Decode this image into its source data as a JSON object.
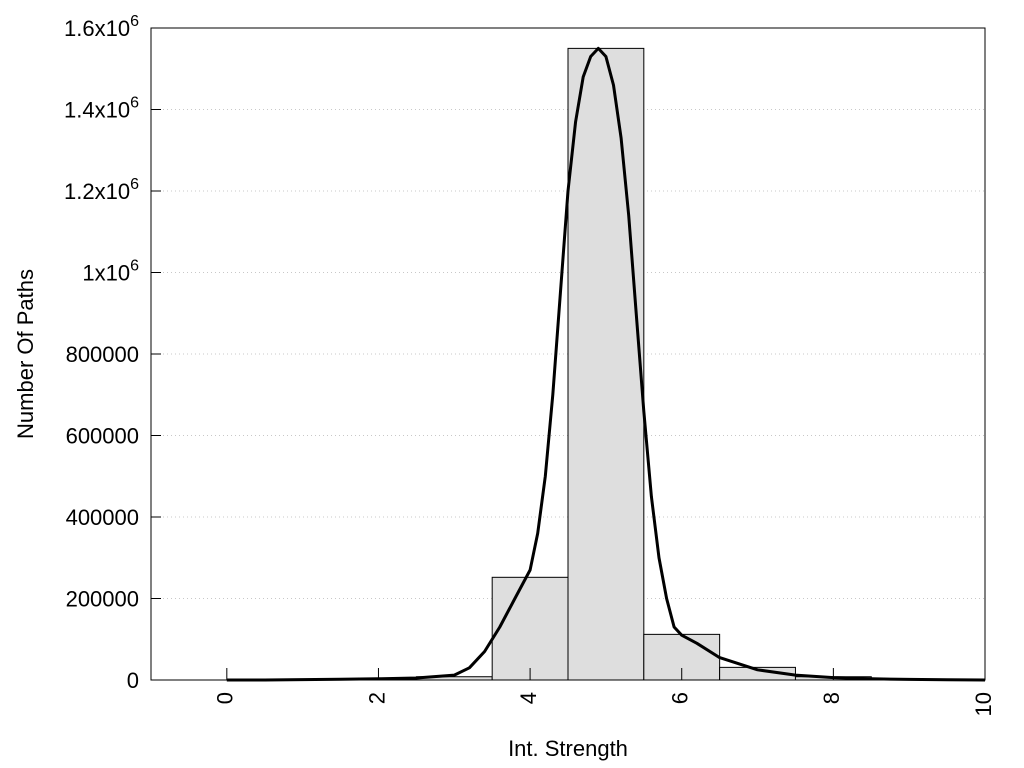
{
  "chart_data": {
    "type": "bar",
    "xlabel": "Int. Strength",
    "ylabel": "Number Of Paths",
    "xlim": [
      -1,
      10
    ],
    "ylim": [
      0,
      1600000
    ],
    "grid": true,
    "x_ticks": [
      {
        "value": 0,
        "label": "0"
      },
      {
        "value": 2,
        "label": "2"
      },
      {
        "value": 4,
        "label": "4"
      },
      {
        "value": 6,
        "label": "6"
      },
      {
        "value": 8,
        "label": "8"
      },
      {
        "value": 10,
        "label": "10"
      }
    ],
    "y_ticks": [
      {
        "value": 0,
        "base": "0",
        "exp": ""
      },
      {
        "value": 200000,
        "base": "200000",
        "exp": ""
      },
      {
        "value": 400000,
        "base": "400000",
        "exp": ""
      },
      {
        "value": 600000,
        "base": "600000",
        "exp": ""
      },
      {
        "value": 800000,
        "base": "800000",
        "exp": ""
      },
      {
        "value": 1000000,
        "base": "1x10",
        "exp": "6"
      },
      {
        "value": 1200000,
        "base": "1.2x10",
        "exp": "6"
      },
      {
        "value": 1400000,
        "base": "1.4x10",
        "exp": "6"
      },
      {
        "value": 1600000,
        "base": "1.6x10",
        "exp": "6"
      }
    ],
    "bar_width": 1,
    "bars": [
      {
        "x": 0,
        "value": 0
      },
      {
        "x": 1,
        "value": 1000
      },
      {
        "x": 2,
        "value": 2000
      },
      {
        "x": 3,
        "value": 8000
      },
      {
        "x": 4,
        "value": 252000
      },
      {
        "x": 5,
        "value": 1550000
      },
      {
        "x": 6,
        "value": 112000
      },
      {
        "x": 7,
        "value": 31000
      },
      {
        "x": 8,
        "value": 8000
      },
      {
        "x": 9,
        "value": 2000
      }
    ],
    "curve": {
      "x": [
        0,
        0.5,
        1,
        1.5,
        2,
        2.5,
        3,
        3.2,
        3.4,
        3.6,
        3.8,
        4,
        4.1,
        4.2,
        4.3,
        4.4,
        4.5,
        4.6,
        4.7,
        4.8,
        4.9,
        5,
        5.1,
        5.2,
        5.3,
        5.4,
        5.5,
        5.6,
        5.7,
        5.8,
        5.9,
        6,
        6.2,
        6.5,
        7,
        7.5,
        8,
        8.5,
        9,
        9.5,
        10
      ],
      "y": [
        0,
        0,
        1000,
        2000,
        3000,
        5000,
        12000,
        30000,
        70000,
        130000,
        200000,
        270000,
        360000,
        500000,
        700000,
        950000,
        1200000,
        1370000,
        1480000,
        1530000,
        1550000,
        1530000,
        1460000,
        1330000,
        1140000,
        900000,
        660000,
        450000,
        300000,
        200000,
        130000,
        110000,
        90000,
        55000,
        25000,
        12000,
        6000,
        3000,
        1500,
        500,
        0
      ]
    },
    "colors": {
      "bar_fill": "#dedede",
      "bar_stroke": "#000000",
      "curve": "#000000",
      "grid": "#c8c8c8"
    }
  }
}
